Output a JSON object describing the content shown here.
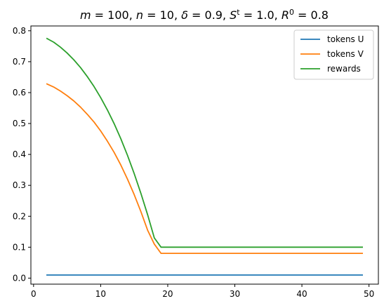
{
  "chart_data": {
    "type": "line",
    "title_parts": [
      "m",
      " = 100, ",
      "n",
      " = 10, ",
      "δ",
      " = 0.9, ",
      "S",
      "t",
      " = 1.0, ",
      "R",
      "0",
      " = 0.8"
    ],
    "xlim": [
      -0.4,
      51.4
    ],
    "ylim": [
      -0.0195,
      0.8155
    ],
    "xticks": [
      0,
      10,
      20,
      30,
      40,
      50
    ],
    "yticks": [
      0.0,
      0.1,
      0.2,
      0.3,
      0.4,
      0.5,
      0.6,
      0.7,
      0.8
    ],
    "xtick_labels": [
      "0",
      "10",
      "20",
      "30",
      "40",
      "50"
    ],
    "ytick_labels": [
      "0.0",
      "0.1",
      "0.2",
      "0.3",
      "0.4",
      "0.5",
      "0.6",
      "0.7",
      "0.8"
    ],
    "legend_position": "top-right",
    "series": [
      {
        "name": "tokens U",
        "color": "#1f77b4",
        "x": [
          2,
          49
        ],
        "y": [
          0.01,
          0.01
        ]
      },
      {
        "name": "tokens V",
        "color": "#ff7f0e",
        "x": [
          2,
          3,
          4,
          5,
          6,
          7,
          8,
          9,
          10,
          11,
          12,
          13,
          14,
          15,
          16,
          17,
          18,
          19,
          20,
          25,
          30,
          35,
          40,
          45,
          49
        ],
        "y": [
          0.628,
          0.618,
          0.605,
          0.59,
          0.573,
          0.553,
          0.53,
          0.505,
          0.476,
          0.443,
          0.407,
          0.366,
          0.32,
          0.27,
          0.215,
          0.155,
          0.11,
          0.08,
          0.08,
          0.08,
          0.08,
          0.08,
          0.08,
          0.08,
          0.08
        ]
      },
      {
        "name": "rewards",
        "color": "#2ca02c",
        "x": [
          2,
          3,
          4,
          5,
          6,
          7,
          8,
          9,
          10,
          11,
          12,
          13,
          14,
          15,
          16,
          17,
          18,
          19,
          20,
          25,
          30,
          35,
          40,
          45,
          49
        ],
        "y": [
          0.775,
          0.763,
          0.747,
          0.728,
          0.706,
          0.681,
          0.652,
          0.62,
          0.584,
          0.544,
          0.5,
          0.451,
          0.397,
          0.338,
          0.274,
          0.205,
          0.13,
          0.1,
          0.1,
          0.1,
          0.1,
          0.1,
          0.1,
          0.1,
          0.1
        ]
      }
    ]
  }
}
